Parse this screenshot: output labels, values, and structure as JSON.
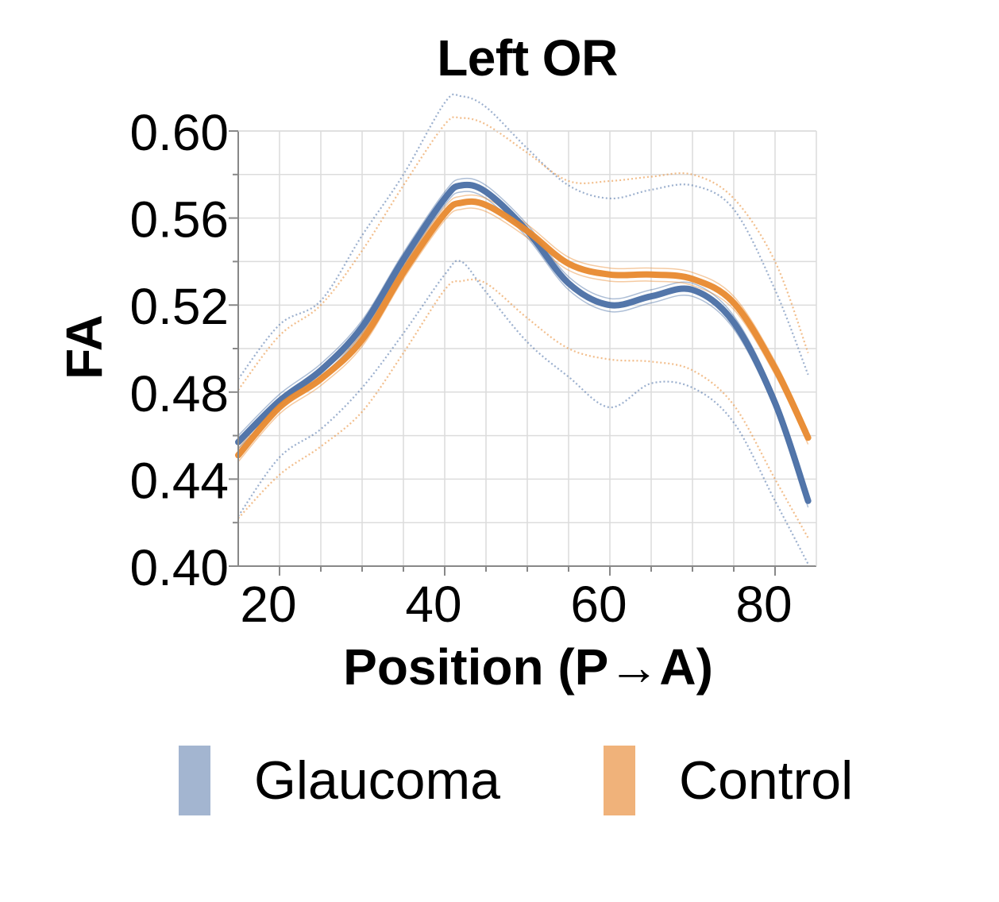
{
  "chart_data": {
    "type": "line",
    "title": "Left OR",
    "xlabel": "Position (P→A)",
    "ylabel": "FA",
    "xlim": [
      15,
      85
    ],
    "ylim": [
      0.4,
      0.6
    ],
    "xticks": [
      "20",
      "40",
      "60",
      "80"
    ],
    "xtick_values": [
      20,
      40,
      60,
      80
    ],
    "yticks": [
      "0.60",
      "0.56",
      "0.52",
      "0.48",
      "0.44",
      "0.40"
    ],
    "ytick_values": [
      0.6,
      0.56,
      0.52,
      0.48,
      0.44,
      0.4
    ],
    "grid": true,
    "x": [
      15,
      20,
      25,
      30,
      35,
      40,
      42,
      45,
      50,
      55,
      60,
      65,
      70,
      75,
      80,
      84
    ],
    "series": [
      {
        "name": "Glaucoma",
        "color": "#4a6fa5",
        "legend_color": "#a3b5d0",
        "mean": [
          0.457,
          0.476,
          0.49,
          0.51,
          0.541,
          0.569,
          0.575,
          0.572,
          0.554,
          0.53,
          0.52,
          0.524,
          0.527,
          0.512,
          0.475,
          0.43
        ],
        "ci_upper": [
          0.486,
          0.511,
          0.522,
          0.552,
          0.58,
          0.613,
          0.616,
          0.611,
          0.592,
          0.575,
          0.569,
          0.573,
          0.575,
          0.564,
          0.527,
          0.488
        ],
        "ci_lower": [
          0.423,
          0.45,
          0.463,
          0.482,
          0.507,
          0.534,
          0.54,
          0.526,
          0.503,
          0.487,
          0.473,
          0.484,
          0.482,
          0.466,
          0.43,
          0.401
        ]
      },
      {
        "name": "Control",
        "color": "#e8892e",
        "legend_color": "#f0b27a",
        "mean": [
          0.451,
          0.473,
          0.486,
          0.504,
          0.535,
          0.562,
          0.567,
          0.566,
          0.554,
          0.539,
          0.534,
          0.534,
          0.532,
          0.521,
          0.491,
          0.459
        ],
        "ci_upper": [
          0.481,
          0.506,
          0.52,
          0.545,
          0.575,
          0.603,
          0.606,
          0.603,
          0.59,
          0.577,
          0.577,
          0.579,
          0.58,
          0.569,
          0.54,
          0.498
        ],
        "ci_lower": [
          0.422,
          0.442,
          0.455,
          0.471,
          0.498,
          0.527,
          0.531,
          0.53,
          0.514,
          0.5,
          0.495,
          0.494,
          0.49,
          0.474,
          0.44,
          0.413
        ]
      }
    ]
  }
}
